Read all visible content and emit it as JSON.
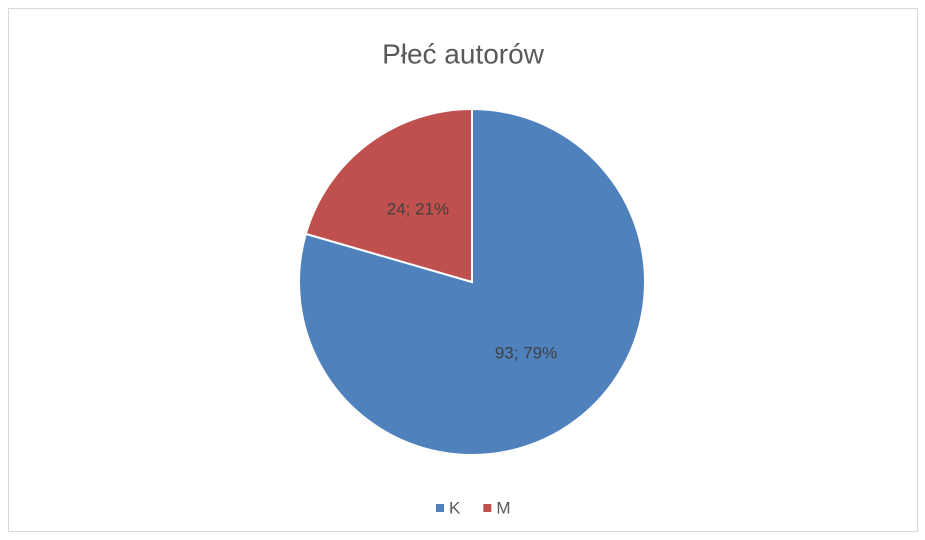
{
  "chart_data": {
    "type": "pie",
    "title": "Płeć autorów",
    "categories": [
      "K",
      "M"
    ],
    "values": [
      93,
      24
    ],
    "value_labels": [
      "93; 79%",
      "24; 21%"
    ],
    "colors": [
      "#4f81bd",
      "#c0504d"
    ],
    "legend": "bottom"
  }
}
